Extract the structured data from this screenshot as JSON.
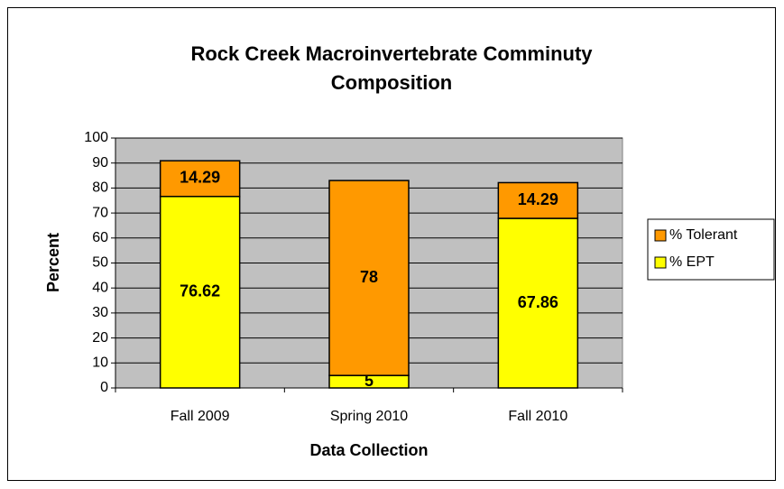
{
  "chart_data": {
    "type": "stacked_bar",
    "title": "Rock Creek Macroinvertebrate Comminuty Composition",
    "x_label": "Data Collection",
    "y_label": "Percent",
    "categories": [
      "Fall 2009",
      "Spring 2010",
      "Fall 2010"
    ],
    "series": [
      {
        "name": "% EPT",
        "color": "#ffff00",
        "values": [
          76.62,
          5,
          67.86
        ]
      },
      {
        "name": "% Tolerant",
        "color": "#ff9900",
        "values": [
          14.29,
          78,
          14.29
        ]
      }
    ],
    "ylim": [
      0,
      100
    ],
    "yticks": [
      0,
      10,
      20,
      30,
      40,
      50,
      60,
      70,
      80,
      90,
      100
    ],
    "grid": true,
    "legend": "right",
    "plot_background": "#c0c0c0"
  }
}
